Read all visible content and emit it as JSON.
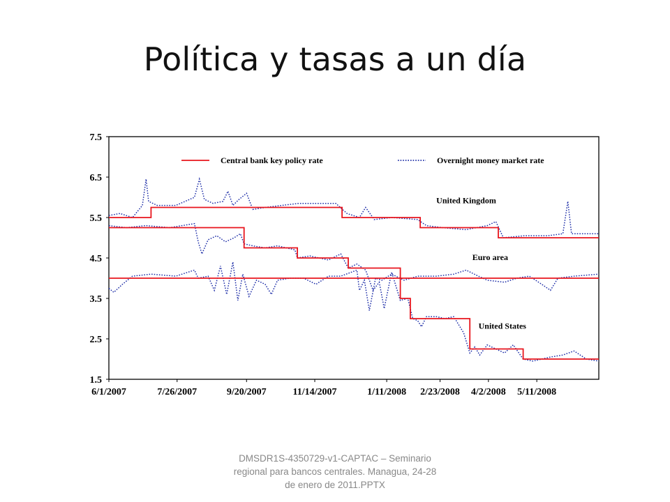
{
  "slide": {
    "title": "Política y tasas a un día",
    "footer": "DMSDR1S-4350729-v1-CAPTAC – Seminario regional para bancos centrales. Managua, 24-28 de enero de 2011.PPTX"
  },
  "chart_data": {
    "type": "line",
    "title": "",
    "xlabel": "",
    "ylabel": "",
    "ylim": [
      1.5,
      7.5
    ],
    "xlim": [
      "2007-06-01",
      "2008-06-30"
    ],
    "yticks": [
      7.5,
      6.5,
      5.5,
      4.5,
      3.5,
      2.5,
      1.5
    ],
    "ytick_labels": [
      "7.5",
      "6.5",
      "5.5",
      "4.5",
      "3.5",
      "2.5",
      "1.5"
    ],
    "xticks": [
      "2007-06-01",
      "2007-07-26",
      "2007-09-20",
      "2007-11-14",
      "2008-01-11",
      "2008-02-23",
      "2008-04-02",
      "2008-05-11"
    ],
    "xtick_labels": [
      "6/1/2007",
      "7/26/2007",
      "9/20/2007",
      "11/14/2007",
      "1/11/2008",
      "2/23/2008",
      "4/2/2008",
      "5/11/2008"
    ],
    "grid": false,
    "legend": {
      "placement": "top",
      "items": [
        {
          "label": "Central bank key policy rate",
          "style": "solid",
          "color": "#e8141c"
        },
        {
          "label": "Overnight money market rate",
          "style": "dotted",
          "color": "#1f2fa8"
        }
      ]
    },
    "annotations": [
      {
        "text": "United Kingdom",
        "x": "2008-02-20",
        "y": 5.85
      },
      {
        "text": "Euro area",
        "x": "2008-03-20",
        "y": 4.45
      },
      {
        "text": "United States",
        "x": "2008-03-25",
        "y": 2.75
      }
    ],
    "series": [
      {
        "name": "United Kingdom policy rate",
        "style": "solid",
        "color": "#e8141c",
        "points": [
          [
            "2007-06-01",
            5.5
          ],
          [
            "2007-07-05",
            5.5
          ],
          [
            "2007-07-05",
            5.75
          ],
          [
            "2007-12-06",
            5.75
          ],
          [
            "2007-12-06",
            5.5
          ],
          [
            "2008-02-07",
            5.5
          ],
          [
            "2008-02-07",
            5.25
          ],
          [
            "2008-04-10",
            5.25
          ],
          [
            "2008-04-10",
            5.0
          ],
          [
            "2008-06-30",
            5.0
          ]
        ]
      },
      {
        "name": "Euro area policy rate",
        "style": "solid",
        "color": "#e8141c",
        "points": [
          [
            "2007-06-01",
            4.0
          ],
          [
            "2008-06-30",
            4.0
          ]
        ]
      },
      {
        "name": "United States policy rate",
        "style": "solid",
        "color": "#e8141c",
        "points": [
          [
            "2007-06-01",
            5.25
          ],
          [
            "2007-09-18",
            5.25
          ],
          [
            "2007-09-18",
            4.75
          ],
          [
            "2007-10-31",
            4.75
          ],
          [
            "2007-10-31",
            4.5
          ],
          [
            "2007-12-11",
            4.5
          ],
          [
            "2007-12-11",
            4.25
          ],
          [
            "2008-01-22",
            4.25
          ],
          [
            "2008-01-22",
            3.5
          ],
          [
            "2008-01-30",
            3.5
          ],
          [
            "2008-01-30",
            3.0
          ],
          [
            "2008-03-18",
            3.0
          ],
          [
            "2008-03-18",
            2.25
          ],
          [
            "2008-04-30",
            2.25
          ],
          [
            "2008-04-30",
            2.0
          ],
          [
            "2008-06-30",
            2.0
          ]
        ]
      },
      {
        "name": "United Kingdom overnight rate",
        "style": "dotted",
        "color": "#1f2fa8",
        "points": [
          [
            "2007-06-01",
            5.55
          ],
          [
            "2007-06-10",
            5.6
          ],
          [
            "2007-06-20",
            5.5
          ],
          [
            "2007-06-28",
            5.8
          ],
          [
            "2007-07-01",
            6.45
          ],
          [
            "2007-07-03",
            5.9
          ],
          [
            "2007-07-10",
            5.8
          ],
          [
            "2007-07-25",
            5.8
          ],
          [
            "2007-08-09",
            6.0
          ],
          [
            "2007-08-13",
            6.45
          ],
          [
            "2007-08-17",
            5.95
          ],
          [
            "2007-08-24",
            5.85
          ],
          [
            "2007-09-01",
            5.9
          ],
          [
            "2007-09-05",
            6.15
          ],
          [
            "2007-09-09",
            5.8
          ],
          [
            "2007-09-14",
            5.95
          ],
          [
            "2007-09-20",
            6.1
          ],
          [
            "2007-09-25",
            5.7
          ],
          [
            "2007-10-05",
            5.75
          ],
          [
            "2007-11-01",
            5.85
          ],
          [
            "2007-11-20",
            5.85
          ],
          [
            "2007-12-01",
            5.85
          ],
          [
            "2007-12-10",
            5.6
          ],
          [
            "2007-12-20",
            5.5
          ],
          [
            "2007-12-25",
            5.75
          ],
          [
            "2008-01-01",
            5.45
          ],
          [
            "2008-01-15",
            5.5
          ],
          [
            "2008-02-05",
            5.45
          ],
          [
            "2008-02-12",
            5.3
          ],
          [
            "2008-02-25",
            5.25
          ],
          [
            "2008-03-15",
            5.2
          ],
          [
            "2008-04-01",
            5.3
          ],
          [
            "2008-04-08",
            5.4
          ],
          [
            "2008-04-14",
            5.0
          ],
          [
            "2008-05-01",
            5.05
          ],
          [
            "2008-05-20",
            5.05
          ],
          [
            "2008-06-01",
            5.1
          ],
          [
            "2008-06-05",
            5.9
          ],
          [
            "2008-06-08",
            5.1
          ],
          [
            "2008-06-30",
            5.1
          ]
        ]
      },
      {
        "name": "Euro area overnight rate",
        "style": "dotted",
        "color": "#1f2fa8",
        "points": [
          [
            "2007-06-01",
            3.75
          ],
          [
            "2007-06-05",
            3.65
          ],
          [
            "2007-06-12",
            3.85
          ],
          [
            "2007-06-20",
            4.05
          ],
          [
            "2007-07-05",
            4.1
          ],
          [
            "2007-07-25",
            4.05
          ],
          [
            "2007-08-09",
            4.2
          ],
          [
            "2007-08-12",
            4.0
          ],
          [
            "2007-08-20",
            4.05
          ],
          [
            "2007-08-25",
            3.7
          ],
          [
            "2007-08-30",
            4.3
          ],
          [
            "2007-09-04",
            3.6
          ],
          [
            "2007-09-09",
            4.4
          ],
          [
            "2007-09-13",
            3.45
          ],
          [
            "2007-09-17",
            4.1
          ],
          [
            "2007-09-22",
            3.55
          ],
          [
            "2007-09-28",
            3.95
          ],
          [
            "2007-10-05",
            3.85
          ],
          [
            "2007-10-10",
            3.6
          ],
          [
            "2007-10-15",
            3.95
          ],
          [
            "2007-10-25",
            4.0
          ],
          [
            "2007-11-05",
            4.0
          ],
          [
            "2007-11-15",
            3.85
          ],
          [
            "2007-11-25",
            4.05
          ],
          [
            "2007-12-05",
            4.05
          ],
          [
            "2007-12-18",
            4.2
          ],
          [
            "2007-12-20",
            3.7
          ],
          [
            "2007-12-24",
            3.95
          ],
          [
            "2007-12-28",
            3.2
          ],
          [
            "2008-01-02",
            4.0
          ],
          [
            "2008-01-07",
            3.95
          ],
          [
            "2008-01-15",
            4.1
          ],
          [
            "2008-01-25",
            3.95
          ],
          [
            "2008-02-05",
            4.05
          ],
          [
            "2008-02-20",
            4.05
          ],
          [
            "2008-03-05",
            4.1
          ],
          [
            "2008-03-15",
            4.2
          ],
          [
            "2008-03-25",
            4.05
          ],
          [
            "2008-04-01",
            3.95
          ],
          [
            "2008-04-15",
            3.9
          ],
          [
            "2008-04-25",
            4.0
          ],
          [
            "2008-05-05",
            4.05
          ],
          [
            "2008-05-15",
            3.85
          ],
          [
            "2008-05-22",
            3.7
          ],
          [
            "2008-05-28",
            4.0
          ],
          [
            "2008-06-10",
            4.05
          ],
          [
            "2008-06-30",
            4.1
          ]
        ]
      },
      {
        "name": "United States overnight rate",
        "style": "dotted",
        "color": "#1f2fa8",
        "points": [
          [
            "2007-06-01",
            5.3
          ],
          [
            "2007-06-15",
            5.25
          ],
          [
            "2007-07-01",
            5.3
          ],
          [
            "2007-07-20",
            5.25
          ],
          [
            "2007-08-09",
            5.35
          ],
          [
            "2007-08-12",
            4.9
          ],
          [
            "2007-08-15",
            4.6
          ],
          [
            "2007-08-20",
            4.95
          ],
          [
            "2007-08-27",
            5.05
          ],
          [
            "2007-09-03",
            4.9
          ],
          [
            "2007-09-10",
            5.0
          ],
          [
            "2007-09-15",
            5.1
          ],
          [
            "2007-09-18",
            4.85
          ],
          [
            "2007-09-25",
            4.8
          ],
          [
            "2007-10-05",
            4.75
          ],
          [
            "2007-10-15",
            4.8
          ],
          [
            "2007-10-29",
            4.7
          ],
          [
            "2007-10-31",
            4.5
          ],
          [
            "2007-11-10",
            4.55
          ],
          [
            "2007-11-25",
            4.45
          ],
          [
            "2007-12-05",
            4.6
          ],
          [
            "2007-12-11",
            4.25
          ],
          [
            "2007-12-18",
            4.35
          ],
          [
            "2007-12-25",
            4.2
          ],
          [
            "2007-12-31",
            3.7
          ],
          [
            "2008-01-05",
            3.9
          ],
          [
            "2008-01-09",
            3.25
          ],
          [
            "2008-01-15",
            4.15
          ],
          [
            "2008-01-22",
            3.45
          ],
          [
            "2008-01-28",
            3.5
          ],
          [
            "2008-02-01",
            3.0
          ],
          [
            "2008-02-05",
            2.95
          ],
          [
            "2008-02-08",
            2.8
          ],
          [
            "2008-02-12",
            3.05
          ],
          [
            "2008-02-20",
            3.05
          ],
          [
            "2008-02-27",
            3.0
          ],
          [
            "2008-03-05",
            3.05
          ],
          [
            "2008-03-13",
            2.65
          ],
          [
            "2008-03-18",
            2.15
          ],
          [
            "2008-03-22",
            2.3
          ],
          [
            "2008-03-26",
            2.1
          ],
          [
            "2008-04-01",
            2.35
          ],
          [
            "2008-04-08",
            2.25
          ],
          [
            "2008-04-15",
            2.15
          ],
          [
            "2008-04-22",
            2.35
          ],
          [
            "2008-04-30",
            2.0
          ],
          [
            "2008-05-08",
            1.95
          ],
          [
            "2008-05-15",
            2.0
          ],
          [
            "2008-05-22",
            2.05
          ],
          [
            "2008-06-01",
            2.1
          ],
          [
            "2008-06-10",
            2.2
          ],
          [
            "2008-06-20",
            2.0
          ],
          [
            "2008-06-30",
            1.95
          ]
        ]
      }
    ]
  }
}
